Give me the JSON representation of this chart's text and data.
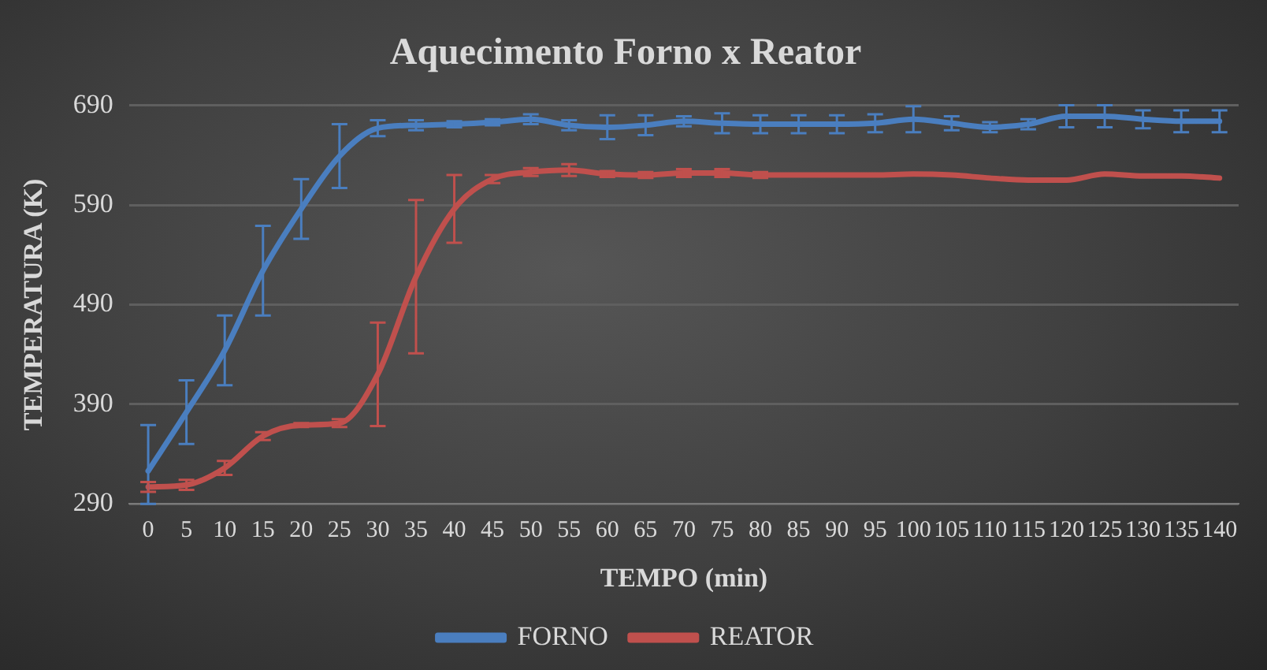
{
  "chart_data": {
    "type": "line",
    "title": "Aquecimento Forno x Reator",
    "xlabel": "TEMPO (min)",
    "ylabel": "TEMPERATURA (K)",
    "categories": [
      "0",
      "5",
      "10",
      "15",
      "20",
      "25",
      "30",
      "35",
      "40",
      "45",
      "50",
      "55",
      "60",
      "65",
      "70",
      "75",
      "80",
      "85",
      "90",
      "95",
      "100",
      "105",
      "110",
      "115",
      "120",
      "125",
      "130",
      "135",
      "140"
    ],
    "ylim": [
      290,
      690
    ],
    "yticks": [
      290,
      390,
      490,
      590,
      690
    ],
    "grid": "y",
    "legend": "bottom",
    "line_style": "solid",
    "series": [
      {
        "name": "FORNO",
        "color": "#4a7ebf",
        "values": [
          323,
          382,
          444,
          524,
          586,
          639,
          667,
          670,
          671,
          673,
          676,
          670,
          668,
          670,
          674,
          672,
          671,
          671,
          671,
          672,
          676,
          672,
          668,
          671,
          679,
          679,
          676,
          674,
          674
        ],
        "errors": [
          [
            290,
            369
          ],
          32,
          35,
          45,
          30,
          32,
          8,
          5,
          3,
          3,
          5,
          5,
          12,
          10,
          5,
          10,
          9,
          9,
          9,
          9,
          13,
          7,
          5,
          5,
          11,
          11,
          9,
          11,
          11
        ]
      },
      {
        "name": "REATOR",
        "color": "#c0504d",
        "values": [
          307,
          309,
          326,
          358,
          369,
          371,
          420,
          518,
          586,
          616,
          623,
          625,
          621,
          620,
          622,
          622,
          620,
          620,
          620,
          620,
          621,
          620,
          617,
          615,
          615,
          621,
          619,
          619,
          617
        ],
        "errors": [
          5,
          5,
          7,
          4,
          2,
          4,
          52,
          77,
          34,
          4,
          4,
          6,
          3,
          3,
          4,
          4,
          3,
          null,
          null,
          null,
          null,
          null,
          null,
          null,
          null,
          null,
          null,
          null,
          null
        ]
      }
    ]
  }
}
